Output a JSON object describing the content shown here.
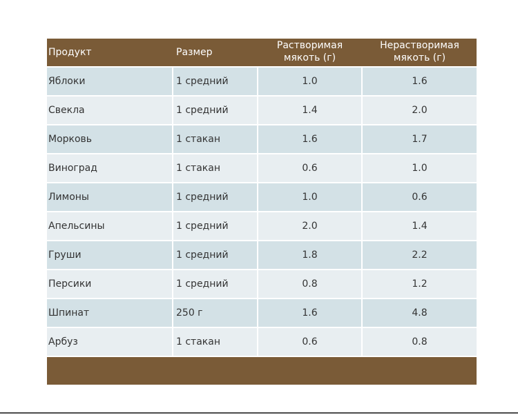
{
  "table": {
    "headers": [
      "Продукт",
      "Размер",
      "Растворимая мякоть (г)",
      "Нерастворимая мякоть (г)"
    ],
    "rows": [
      {
        "product": "Яблоки",
        "size": "1 средний",
        "soluble": "1.0",
        "insoluble": "1.6"
      },
      {
        "product": "Свекла",
        "size": "1 средний",
        "soluble": "1.4",
        "insoluble": "2.0"
      },
      {
        "product": "Морковь",
        "size": "1 стакан",
        "soluble": "1.6",
        "insoluble": "1.7"
      },
      {
        "product": "Виноград",
        "size": "1 стакан",
        "soluble": "0.6",
        "insoluble": "1.0"
      },
      {
        "product": "Лимоны",
        "size": "1 средний",
        "soluble": "1.0",
        "insoluble": "0.6"
      },
      {
        "product": "Апельсины",
        "size": "1 средний",
        "soluble": "2.0",
        "insoluble": "1.4"
      },
      {
        "product": "Груши",
        "size": "1 средний",
        "soluble": "1.8",
        "insoluble": "2.2"
      },
      {
        "product": "Персики",
        "size": "1 средний",
        "soluble": "0.8",
        "insoluble": "1.2"
      },
      {
        "product": "Шпинат",
        "size": "250 г",
        "soluble": "1.6",
        "insoluble": "4.8"
      },
      {
        "product": "Арбуз",
        "size": "1 стакан",
        "soluble": "0.6",
        "insoluble": "0.8"
      }
    ]
  },
  "colors": {
    "header_bg": "#7a5b37",
    "row_odd": "#d3e1e6",
    "row_even": "#e8eef1"
  }
}
